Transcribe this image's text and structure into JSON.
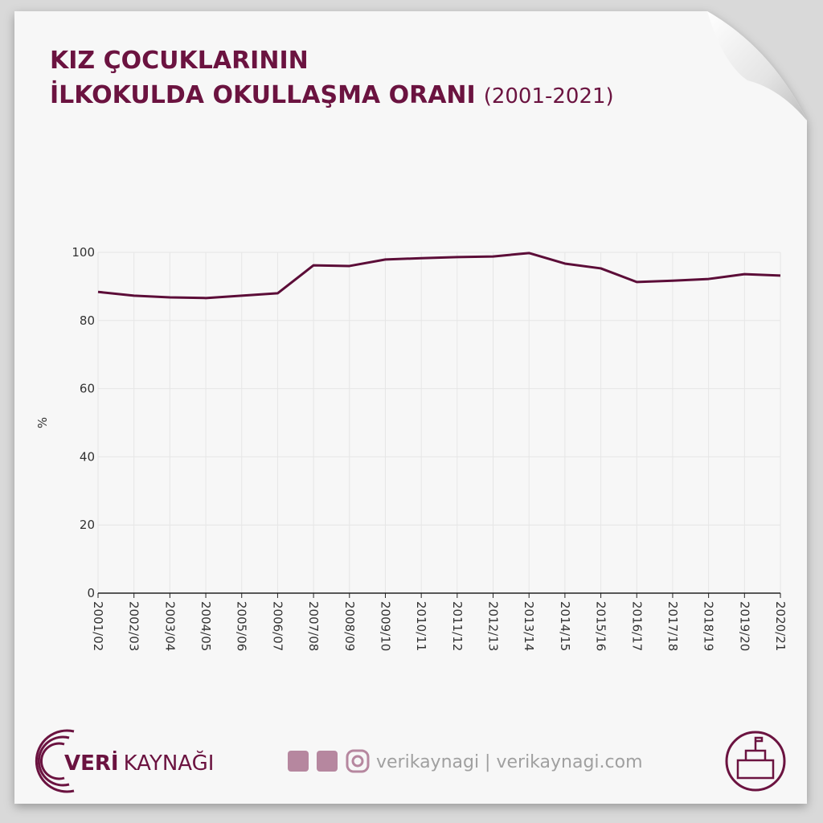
{
  "chart_data": {
    "type": "line",
    "title_lines": [
      "KIZ ÇOCUKLARININ",
      "İLKOKULDA OKULLAŞMA ORANI"
    ],
    "subtitle": "(2001-2021)",
    "y_label": "%",
    "categories": [
      "2001/02",
      "2002/03",
      "2003/04",
      "2004/05",
      "2005/06",
      "2006/07",
      "2007/08",
      "2008/09",
      "2009/10",
      "2010/11",
      "2011/12",
      "2012/13",
      "2013/14",
      "2014/15",
      "2015/16",
      "2016/17",
      "2017/18",
      "2018/19",
      "2019/20",
      "2020/21"
    ],
    "values": [
      88.4,
      87.3,
      86.8,
      86.6,
      87.3,
      88.0,
      96.2,
      96.0,
      97.9,
      98.3,
      98.6,
      98.8,
      99.8,
      96.7,
      95.3,
      91.3,
      91.7,
      92.2,
      93.6,
      93.2
    ],
    "color": "#5c0d38",
    "ylim": [
      0,
      100
    ],
    "yticks": [
      0,
      20,
      40,
      60,
      80,
      100
    ],
    "grid": true
  },
  "footer": {
    "brand_bold": "VERİ",
    "brand": "KAYNAĞI",
    "social": "verikaynagi | verikaynagi.com"
  }
}
